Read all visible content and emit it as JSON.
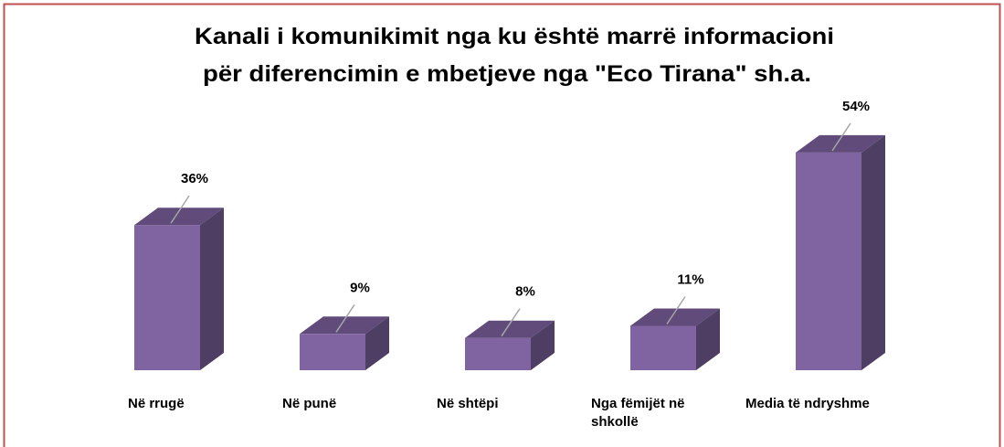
{
  "chart_data": {
    "type": "bar3d",
    "title": [
      "Kanali i komunikimit nga ku është marrë informacioni",
      "për diferencimin e mbetjeve nga \"Eco Tirana\" sh.a."
    ],
    "categories": [
      "Në rrugë",
      "Në punë",
      "Në shtëpi",
      "Nga fëmijët në shkollë",
      "Media të ndryshme"
    ],
    "values": [
      36,
      9,
      8,
      11,
      54
    ],
    "value_labels": [
      "36%",
      "9%",
      "8%",
      "11%",
      "54%"
    ],
    "color": "#8064a2"
  }
}
